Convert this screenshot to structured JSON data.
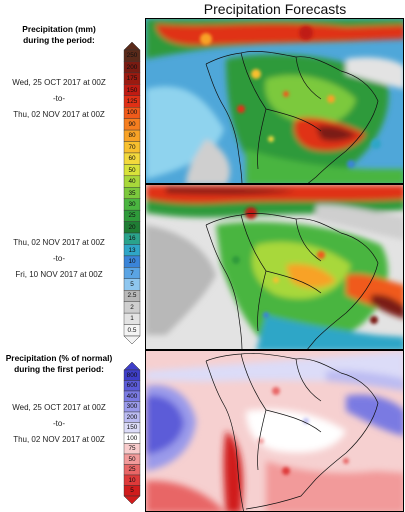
{
  "header": {
    "title": "Precipitation Forecasts"
  },
  "panel1": {
    "heading_line1": "Precipitation (mm)",
    "heading_line2": "during the period:",
    "start": "Wed, 25 OCT 2017 at 00Z",
    "sep": "-to-",
    "end": "Thu, 02 NOV 2017 at 00Z"
  },
  "panel2": {
    "start": "Thu, 02 NOV 2017 at 00Z",
    "sep": "-to-",
    "end": "Fri, 10 NOV 2017 at 00Z"
  },
  "panel3": {
    "heading_line1": "Precipitation (% of normal)",
    "heading_line2": "during the first period:",
    "start": "Wed, 25 OCT 2017 at 00Z",
    "sep": "-to-",
    "end": "Thu, 02 NOV 2017 at 00Z"
  },
  "scale_mm": {
    "labels": [
      "250",
      "200",
      "175",
      "150",
      "125",
      "100",
      "90",
      "80",
      "70",
      "60",
      "50",
      "40",
      "35",
      "30",
      "25",
      "20",
      "16",
      "13",
      "10",
      "7",
      "5",
      "2.5",
      "2",
      "1",
      "0.5"
    ],
    "colors": [
      "#5a2a1a",
      "#7a1b12",
      "#9b1a10",
      "#c01b12",
      "#e03015",
      "#f05a1a",
      "#f57e1f",
      "#f8a226",
      "#f8c02e",
      "#f3d93c",
      "#d8e33a",
      "#a8d83a",
      "#7cc93c",
      "#4ab540",
      "#2e9a3a",
      "#1f7d34",
      "#2aa38c",
      "#2fa6c7",
      "#3a84d8",
      "#5aa4e4",
      "#8ec6ef",
      "#b8b8b8",
      "#cfcfcf",
      "#e3e3e3",
      "#f4f4f4"
    ]
  },
  "scale_pct": {
    "labels": [
      "800",
      "600",
      "400",
      "300",
      "200",
      "150",
      "100",
      "75",
      "50",
      "25",
      "10",
      "5"
    ],
    "colors": [
      "#3e3ec8",
      "#5b5bd8",
      "#7a7ae2",
      "#9a9aea",
      "#bcbcf2",
      "#dcdcf8",
      "#ffffff",
      "#f8cccc",
      "#f29a9a",
      "#e86666",
      "#de3a3a",
      "#d01c1c"
    ]
  }
}
